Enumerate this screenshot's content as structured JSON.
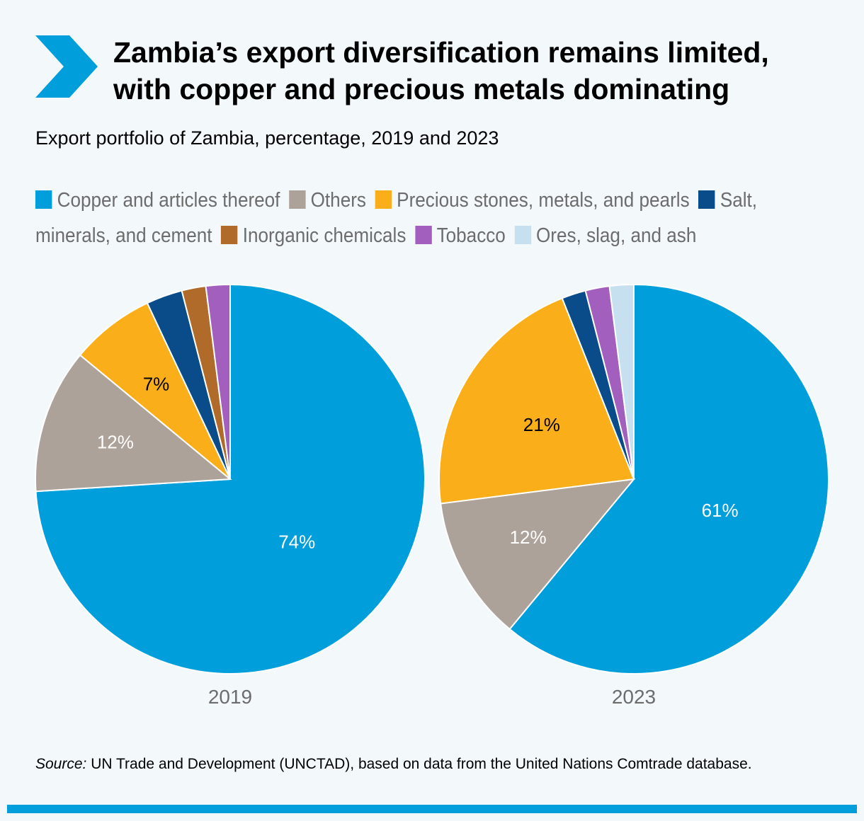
{
  "header": {
    "title_line1": "Zambia’s export diversification remains limited,",
    "title_line2": "with copper and precious metals dominating",
    "subtitle": "Export portfolio of Zambia, percentage, 2019 and 2023"
  },
  "colors": {
    "accent": "#009edb",
    "background": "#f3f8fb"
  },
  "legend": [
    {
      "label": "Copper and articles thereof",
      "color": "#009edb"
    },
    {
      "label": "Others",
      "color": "#ada29a"
    },
    {
      "label": "Precious stones, metals, and pearls",
      "color": "#f9ae1a"
    },
    {
      "label": "Salt, minerals, and cement",
      "color": "#0a4c8a"
    },
    {
      "label": "Inorganic chemicals",
      "color": "#b06a2a"
    },
    {
      "label": "Tobacco",
      "color": "#a25fbd"
    },
    {
      "label": "Ores, slag, and ash",
      "color": "#c6e0f0"
    }
  ],
  "chart_data": [
    {
      "type": "pie",
      "label": "2019",
      "start": "12 o'clock, clockwise",
      "slices": [
        {
          "name": "Copper and articles thereof",
          "value": 74,
          "label": "74%"
        },
        {
          "name": "Others",
          "value": 12,
          "label": "12%"
        },
        {
          "name": "Precious stones, metals, and pearls",
          "value": 7,
          "label": "7%"
        },
        {
          "name": "Salt, minerals, and cement",
          "value": 3,
          "label": ""
        },
        {
          "name": "Inorganic chemicals",
          "value": 2,
          "label": ""
        },
        {
          "name": "Tobacco",
          "value": 2,
          "label": ""
        }
      ]
    },
    {
      "type": "pie",
      "label": "2023",
      "start": "12 o'clock, clockwise",
      "slices": [
        {
          "name": "Copper and articles thereof",
          "value": 61,
          "label": "61%"
        },
        {
          "name": "Others",
          "value": 12,
          "label": "12%"
        },
        {
          "name": "Precious stones, metals, and pearls",
          "value": 21,
          "label": "21%"
        },
        {
          "name": "Salt, minerals, and cement",
          "value": 2,
          "label": ""
        },
        {
          "name": "Tobacco",
          "value": 2,
          "label": ""
        },
        {
          "name": "Ores, slag, and ash",
          "value": 2,
          "label": ""
        }
      ]
    }
  ],
  "source": {
    "prefix": "Source:",
    "text": " UN Trade and Development (UNCTAD), based on data from the United Nations Comtrade database."
  }
}
